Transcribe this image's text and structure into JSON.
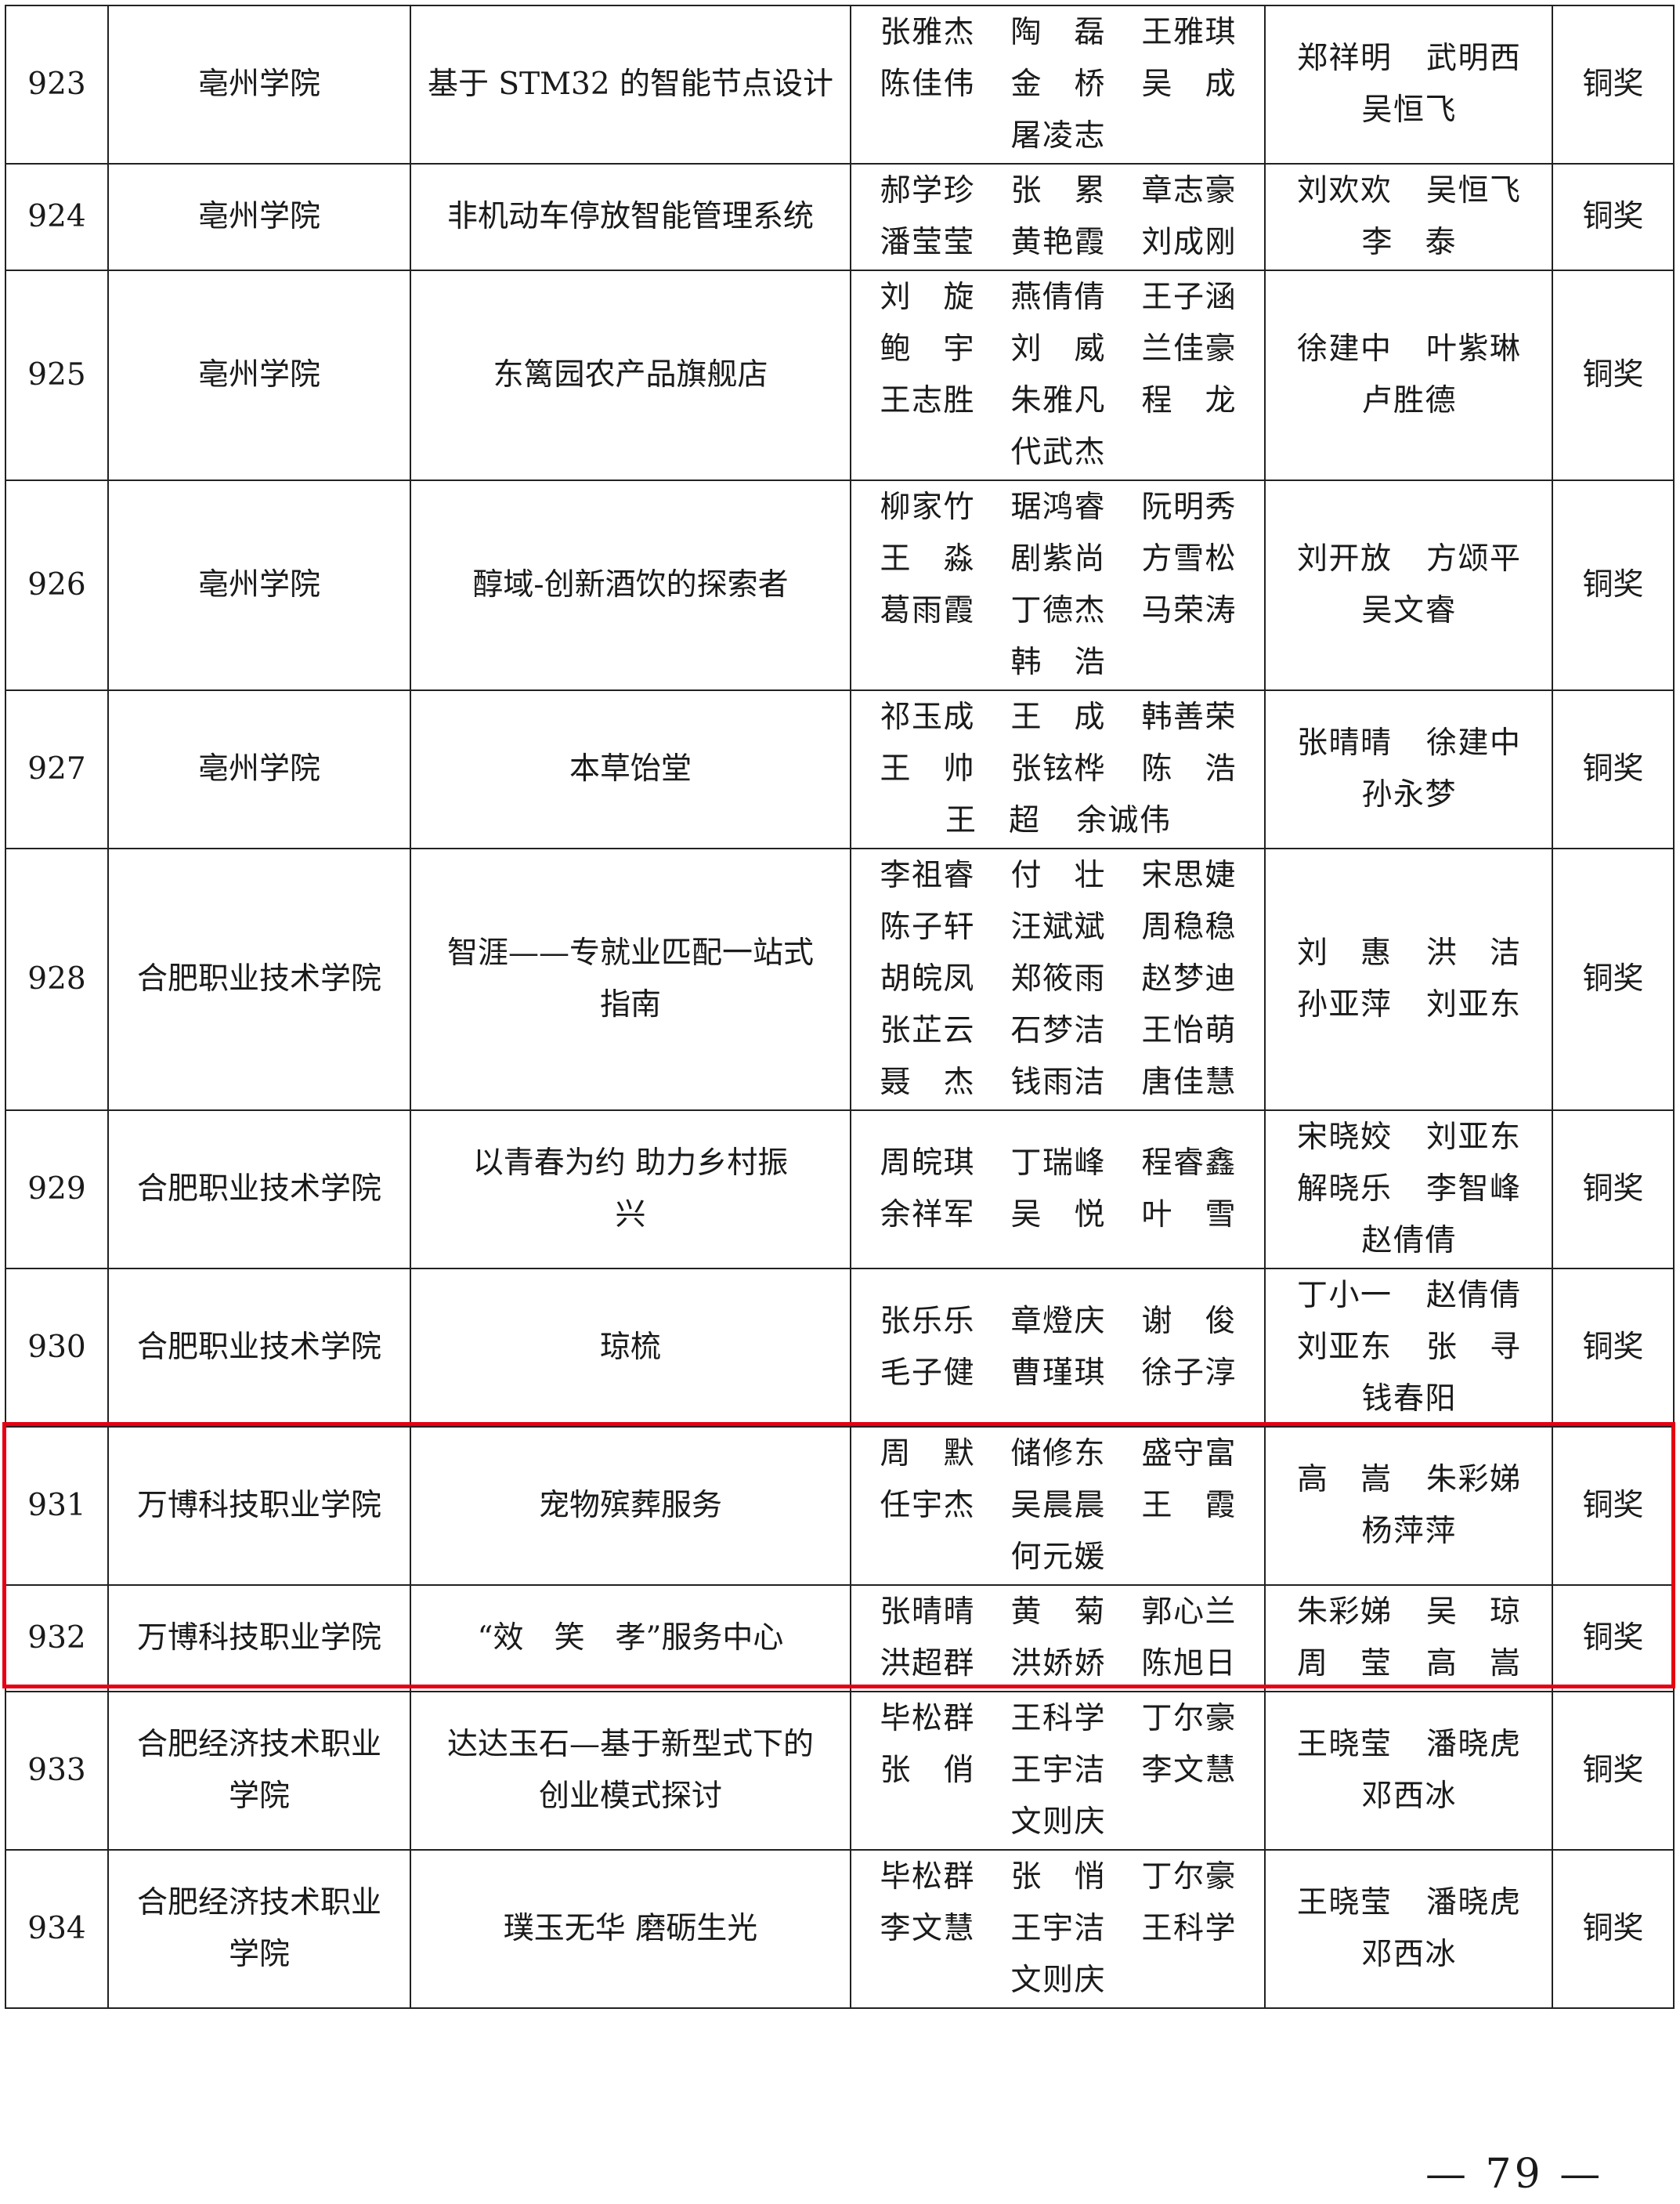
{
  "highlight_color": "#e60012",
  "rows": [
    {
      "no": "923",
      "college": [
        "亳州学院"
      ],
      "project": [
        "基于 STM32 的智能节点设计"
      ],
      "members": [
        [
          "张雅杰",
          "陶磊",
          "王雅琪"
        ],
        [
          "陈佳伟",
          "金桥",
          "吴成"
        ],
        [
          "屠凌志"
        ]
      ],
      "advisors": [
        [
          "郑祥明",
          "武明西"
        ],
        [
          "吴恒飞"
        ]
      ],
      "award": "铜奖"
    },
    {
      "no": "924",
      "college": [
        "亳州学院"
      ],
      "project": [
        "非机动车停放智能管理系统"
      ],
      "members": [
        [
          "郝学珍",
          "张累",
          "章志豪"
        ],
        [
          "潘莹莹",
          "黄艳霞",
          "刘成刚"
        ]
      ],
      "advisors": [
        [
          "刘欢欢",
          "吴恒飞"
        ],
        [
          "李泰"
        ]
      ],
      "award": "铜奖"
    },
    {
      "no": "925",
      "college": [
        "亳州学院"
      ],
      "project": [
        "东篱园农产品旗舰店"
      ],
      "members": [
        [
          "刘旋",
          "燕倩倩",
          "王子涵"
        ],
        [
          "鲍宇",
          "刘威",
          "兰佳豪"
        ],
        [
          "王志胜",
          "朱雅凡",
          "程龙"
        ],
        [
          "代武杰"
        ]
      ],
      "advisors": [
        [
          "徐建中",
          "叶紫琳"
        ],
        [
          "卢胜德"
        ]
      ],
      "award": "铜奖"
    },
    {
      "no": "926",
      "college": [
        "亳州学院"
      ],
      "project": [
        "醇域-创新酒饮的探索者"
      ],
      "members": [
        [
          "柳家竹",
          "琚鸿睿",
          "阮明秀"
        ],
        [
          "王淼",
          "剧紫尚",
          "方雪松"
        ],
        [
          "葛雨霞",
          "丁德杰",
          "马荣涛"
        ],
        [
          "韩浩"
        ]
      ],
      "advisors": [
        [
          "刘开放",
          "方颂平"
        ],
        [
          "吴文睿"
        ]
      ],
      "award": "铜奖"
    },
    {
      "no": "927",
      "college": [
        "亳州学院"
      ],
      "project": [
        "本草饴堂"
      ],
      "members": [
        [
          "祁玉成",
          "王成",
          "韩善荣"
        ],
        [
          "王帅",
          "张铉桦",
          "陈浩"
        ],
        [
          "王超",
          "余诚伟"
        ]
      ],
      "advisors": [
        [
          "张晴晴",
          "徐建中"
        ],
        [
          "孙永梦"
        ]
      ],
      "award": "铜奖"
    },
    {
      "no": "928",
      "college": [
        "合肥职业技术学院"
      ],
      "project": [
        "智涯——专就业匹配一站式",
        "指南"
      ],
      "members": [
        [
          "李祖睿",
          "付壮",
          "宋思婕"
        ],
        [
          "陈子轩",
          "汪斌斌",
          "周稳稳"
        ],
        [
          "胡皖凤",
          "郑筱雨",
          "赵梦迪"
        ],
        [
          "张芷云",
          "石梦洁",
          "王怡萌"
        ],
        [
          "聂杰",
          "钱雨洁",
          "唐佳慧"
        ]
      ],
      "advisors": [
        [
          "刘惠",
          "洪洁"
        ],
        [
          "孙亚萍",
          "刘亚东"
        ]
      ],
      "award": "铜奖"
    },
    {
      "no": "929",
      "college": [
        "合肥职业技术学院"
      ],
      "project": [
        "以青春为约 助力乡村振",
        "兴"
      ],
      "members": [
        [
          "周皖琪",
          "丁瑞峰",
          "程睿鑫"
        ],
        [
          "余祥军",
          "吴悦",
          "叶雪"
        ]
      ],
      "advisors": [
        [
          "宋晓姣",
          "刘亚东"
        ],
        [
          "解晓乐",
          "李智峰"
        ],
        [
          "赵倩倩"
        ]
      ],
      "award": "铜奖"
    },
    {
      "no": "930",
      "college": [
        "合肥职业技术学院"
      ],
      "project": [
        "琼梳"
      ],
      "members": [
        [
          "张乐乐",
          "章燈庆",
          "谢俊"
        ],
        [
          "毛子健",
          "曹瑾琪",
          "徐子淳"
        ]
      ],
      "advisors": [
        [
          "丁小一",
          "赵倩倩"
        ],
        [
          "刘亚东",
          "张寻"
        ],
        [
          "钱春阳"
        ]
      ],
      "award": "铜奖"
    },
    {
      "no": "931",
      "college": [
        "万博科技职业学院"
      ],
      "project": [
        "宠物殡葬服务"
      ],
      "members": [
        [
          "周默",
          "储修东",
          "盛守富"
        ],
        [
          "任宇杰",
          "吴晨晨",
          "王霞"
        ],
        [
          "何元媛"
        ]
      ],
      "advisors": [
        [
          "高嵩",
          "朱彩娣"
        ],
        [
          "杨萍萍"
        ]
      ],
      "award": "铜奖"
    },
    {
      "no": "932",
      "college": [
        "万博科技职业学院"
      ],
      "project": [
        "“效　笑　孝”服务中心"
      ],
      "members": [
        [
          "张晴晴",
          "黄菊",
          "郭心兰"
        ],
        [
          "洪超群",
          "洪娇娇",
          "陈旭日"
        ]
      ],
      "advisors": [
        [
          "朱彩娣",
          "吴琼"
        ],
        [
          "周莹",
          "高嵩"
        ]
      ],
      "award": "铜奖"
    },
    {
      "no": "933",
      "college": [
        "合肥经济技术职业",
        "学院"
      ],
      "project": [
        "达达玉石—基于新型式下的",
        "创业模式探讨"
      ],
      "members": [
        [
          "毕松群",
          "王科学",
          "丁尔豪"
        ],
        [
          "张俏",
          "王宇洁",
          "李文慧"
        ],
        [
          "文则庆"
        ]
      ],
      "advisors": [
        [
          "王晓莹",
          "潘晓虎"
        ],
        [
          "邓西冰"
        ]
      ],
      "award": "铜奖"
    },
    {
      "no": "934",
      "college": [
        "合肥经济技术职业",
        "学院"
      ],
      "project": [
        "璞玉无华 磨砺生光"
      ],
      "members": [
        [
          "毕松群",
          "张悄",
          "丁尔豪"
        ],
        [
          "李文慧",
          "王宇洁",
          "王科学"
        ],
        [
          "文则庆"
        ]
      ],
      "advisors": [
        [
          "王晓莹",
          "潘晓虎"
        ],
        [
          "邓西冰"
        ]
      ],
      "award": "铜奖"
    }
  ],
  "page_number": "— 79 —"
}
